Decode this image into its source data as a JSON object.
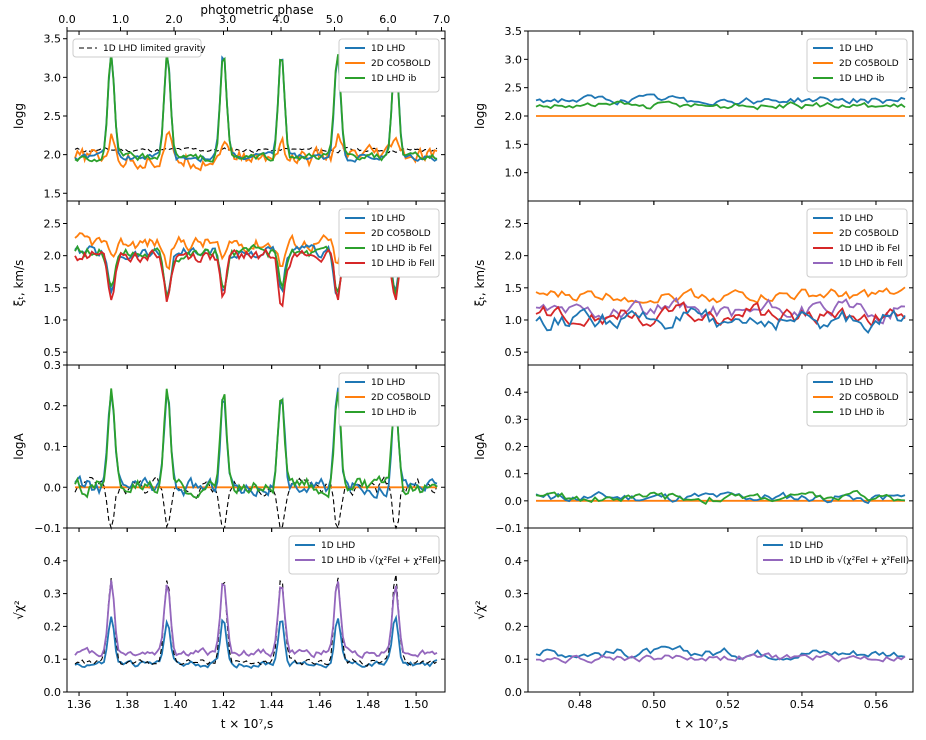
{
  "figure": {
    "top_axis_label": "photometric phase",
    "top_ticks": [
      "0.0",
      "1.0",
      "2.0",
      "3.0",
      "4.0",
      "5.0",
      "6.0",
      "7.0"
    ],
    "left_xlabel": "t × 10⁷,s",
    "right_xlabel": "t × 10⁷,s",
    "left_xticks": [
      "1.36",
      "1.38",
      "1.40",
      "1.42",
      "1.44",
      "1.46",
      "1.48",
      "1.50"
    ],
    "right_xticks": [
      "0.48",
      "0.50",
      "0.52",
      "0.54",
      "0.56"
    ]
  },
  "colors": {
    "lhd": "#1f77b4",
    "co5bold": "#ff7f0e",
    "ib": "#2ca02c",
    "ib_fe1": "#d62728",
    "ib_fe2": "#9467bd",
    "black": "#000000"
  },
  "chart_data": [
    {
      "id": "left-logg",
      "type": "line",
      "ylabel": "logg",
      "ylim": [
        1.4,
        3.6
      ],
      "yticks": [
        "1.5",
        "2.0",
        "2.5",
        "3.0",
        "3.5"
      ],
      "legend_main": [
        "1D LHD",
        "2D CO5BOLD",
        "1D LHD ib"
      ],
      "legend_extra": "1D LHD limited gravity",
      "series": [
        {
          "name": "1D LHD limited gravity",
          "style": "dashed",
          "base": 2.06,
          "peak": 0.0,
          "noise": 0.03,
          "clip_high": 2.1
        },
        {
          "name": "2D CO5BOLD",
          "base": 1.95,
          "peak": 0.28,
          "noise": 0.12
        },
        {
          "name": "1D LHD",
          "base": 1.97,
          "peak": 1.35,
          "noise": 0.05
        },
        {
          "name": "1D LHD ib",
          "base": 1.96,
          "peak": 1.35,
          "noise": 0.05
        }
      ]
    },
    {
      "id": "left-xi",
      "type": "line",
      "ylabel": "ξₜ, km/s",
      "ylim": [
        0.3,
        2.85
      ],
      "yticks": [
        "0.5",
        "1.0",
        "1.5",
        "2.0",
        "2.5"
      ],
      "legend_main": [
        "1D LHD",
        "2D CO5BOLD",
        "1D LHD ib   FeI",
        "1D LHD ib  FeII"
      ],
      "series": [
        {
          "name": "2D CO5BOLD",
          "base": 2.2,
          "dip": 0.35,
          "noise": 0.12
        },
        {
          "name": "1D LHD",
          "base": 2.05,
          "dip": 0.65,
          "noise": 0.1
        },
        {
          "name": "1D LHD ib   FeI",
          "base": 2.05,
          "dip": 0.6,
          "noise": 0.1
        },
        {
          "name": "1D LHD ib  FeII",
          "base": 2.0,
          "dip": 0.7,
          "noise": 0.1
        }
      ]
    },
    {
      "id": "left-loga",
      "type": "line",
      "ylabel": "logA",
      "ylim": [
        -0.1,
        0.3
      ],
      "yticks": [
        "−0.1",
        "0.0",
        "0.1",
        "0.2",
        "0.3"
      ],
      "legend_main": [
        "1D LHD",
        "2D CO5BOLD",
        "1D LHD ib"
      ],
      "series": [
        {
          "name": "dashed-black",
          "style": "dashed",
          "base": 0.0,
          "dip": 0.12,
          "noise": 0.02
        },
        {
          "name": "2D CO5BOLD",
          "base": 0.0,
          "flat": true
        },
        {
          "name": "1D LHD",
          "base": 0.0,
          "peak": 0.23,
          "noise": 0.02
        },
        {
          "name": "1D LHD ib",
          "base": 0.0,
          "peak": 0.23,
          "noise": 0.02
        }
      ]
    },
    {
      "id": "left-chi",
      "type": "line",
      "ylabel": "√χ²",
      "ylim": [
        0.0,
        0.5
      ],
      "yticks": [
        "0.0",
        "0.1",
        "0.2",
        "0.3",
        "0.4"
      ],
      "legend_main": [
        "1D LHD",
        "1D LHD ib √(χ²FeI + χ²FeII)"
      ],
      "series": [
        {
          "name": "1D LHD",
          "base": 0.085,
          "peak": 0.14,
          "noise": 0.01
        },
        {
          "name": "dashed-black",
          "style": "dashed",
          "base": 0.09,
          "peak": 0.26,
          "noise": 0.01
        },
        {
          "name": "1D LHD ib √(χ²FeI + χ²FeII)",
          "base": 0.12,
          "peak": 0.22,
          "noise": 0.012
        }
      ]
    },
    {
      "id": "right-logg",
      "type": "line",
      "ylabel": "logg",
      "ylim": [
        0.5,
        3.5
      ],
      "yticks": [
        "1.0",
        "1.5",
        "2.0",
        "2.5",
        "3.0",
        "3.5"
      ],
      "legend_main": [
        "1D LHD",
        "2D CO5BOLD",
        "1D LHD ib"
      ],
      "series": [
        {
          "name": "2D CO5BOLD",
          "base": 2.0,
          "flat": true
        },
        {
          "name": "1D LHD",
          "base": 2.28,
          "noise": 0.07
        },
        {
          "name": "1D LHD ib",
          "base": 2.18,
          "noise": 0.06
        }
      ]
    },
    {
      "id": "right-xi",
      "type": "line",
      "ylabel": "ξₜ, km/s",
      "ylim": [
        0.3,
        2.85
      ],
      "yticks": [
        "0.5",
        "1.0",
        "1.5",
        "2.0",
        "2.5"
      ],
      "legend_main": [
        "1D LHD",
        "2D CO5BOLD",
        "1D LHD ib FeI",
        "1D LHD ib FeII"
      ],
      "series": [
        {
          "name": "2D CO5BOLD",
          "base": 1.38,
          "noise": 0.1
        },
        {
          "name": "1D LHD ib FeII",
          "base": 1.15,
          "noise": 0.14
        },
        {
          "name": "1D LHD ib FeI",
          "base": 1.08,
          "noise": 0.14
        },
        {
          "name": "1D LHD",
          "base": 1.0,
          "noise": 0.15
        }
      ]
    },
    {
      "id": "right-loga",
      "type": "line",
      "ylabel": "logA",
      "ylim": [
        -0.1,
        0.5
      ],
      "yticks": [
        "−0.1",
        "0.0",
        "0.1",
        "0.2",
        "0.3",
        "0.4"
      ],
      "legend_main": [
        "1D LHD",
        "2D CO5BOLD",
        "1D LHD ib"
      ],
      "series": [
        {
          "name": "2D CO5BOLD",
          "base": 0.0,
          "flat": true
        },
        {
          "name": "1D LHD",
          "base": 0.012,
          "noise": 0.018
        },
        {
          "name": "1D LHD ib",
          "base": 0.012,
          "noise": 0.018
        }
      ]
    },
    {
      "id": "right-chi",
      "type": "line",
      "ylabel": "√χ²",
      "ylim": [
        0.0,
        0.5
      ],
      "yticks": [
        "0.0",
        "0.1",
        "0.2",
        "0.3",
        "0.4"
      ],
      "legend_main": [
        "1D LHD",
        "1D LHD ib √(χ²FeI + χ²FeII)"
      ],
      "series": [
        {
          "name": "1D LHD",
          "base": 0.12,
          "noise": 0.015
        },
        {
          "name": "1D LHD ib √(χ²FeI + χ²FeII)",
          "base": 0.105,
          "noise": 0.012
        }
      ]
    }
  ]
}
